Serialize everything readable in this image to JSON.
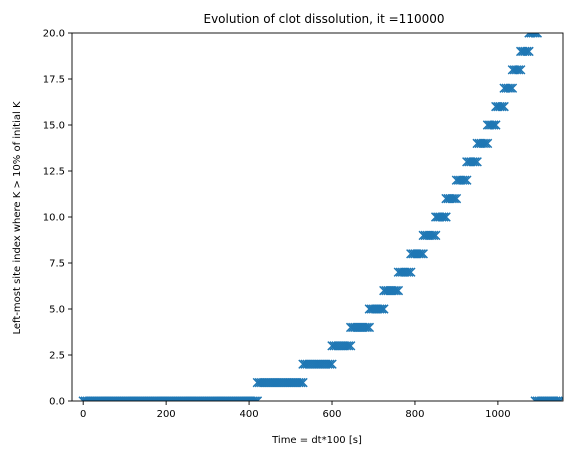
{
  "chart_data": {
    "type": "scatter",
    "title": "Evolution of clot dissolution, it =110000",
    "xlabel": "Time = dt*100 [s]",
    "ylabel": "Left-most site index where K > 10% of initial K",
    "xlim": [
      -27,
      1157
    ],
    "ylim": [
      0,
      20
    ],
    "xticks": [
      0,
      200,
      400,
      600,
      800,
      1000
    ],
    "xtick_labels": [
      "0",
      "200",
      "400",
      "600",
      "800",
      "1000"
    ],
    "yticks": [
      0,
      2.5,
      5,
      7.5,
      10,
      12.5,
      15,
      17.5,
      20
    ],
    "ytick_labels": [
      "0.0",
      "2.5",
      "5.0",
      "7.5",
      "10.0",
      "12.5",
      "15.0",
      "17.5",
      "20.0"
    ],
    "grid": false,
    "marker": "x",
    "colors": {
      "series": "#1f77b4"
    },
    "segments": [
      {
        "y": 0,
        "x_start": 0,
        "x_end": 420
      },
      {
        "y": 1,
        "x_start": 420,
        "x_end": 530
      },
      {
        "y": 2,
        "x_start": 530,
        "x_end": 600
      },
      {
        "y": 3,
        "x_start": 600,
        "x_end": 645
      },
      {
        "y": 4,
        "x_start": 645,
        "x_end": 690
      },
      {
        "y": 5,
        "x_start": 690,
        "x_end": 725
      },
      {
        "y": 6,
        "x_start": 725,
        "x_end": 760
      },
      {
        "y": 7,
        "x_start": 760,
        "x_end": 790
      },
      {
        "y": 8,
        "x_start": 790,
        "x_end": 820
      },
      {
        "y": 9,
        "x_start": 820,
        "x_end": 850
      },
      {
        "y": 10,
        "x_start": 850,
        "x_end": 875
      },
      {
        "y": 11,
        "x_start": 875,
        "x_end": 900
      },
      {
        "y": 12,
        "x_start": 900,
        "x_end": 925
      },
      {
        "y": 13,
        "x_start": 925,
        "x_end": 950
      },
      {
        "y": 14,
        "x_start": 950,
        "x_end": 975
      },
      {
        "y": 15,
        "x_start": 975,
        "x_end": 995
      },
      {
        "y": 16,
        "x_start": 995,
        "x_end": 1015
      },
      {
        "y": 17,
        "x_start": 1015,
        "x_end": 1035
      },
      {
        "y": 18,
        "x_start": 1035,
        "x_end": 1055
      },
      {
        "y": 19,
        "x_start": 1055,
        "x_end": 1075
      },
      {
        "y": 20,
        "x_start": 1075,
        "x_end": 1095
      },
      {
        "y": 0,
        "x_start": 1090,
        "x_end": 1150
      }
    ],
    "x_step": 5
  }
}
